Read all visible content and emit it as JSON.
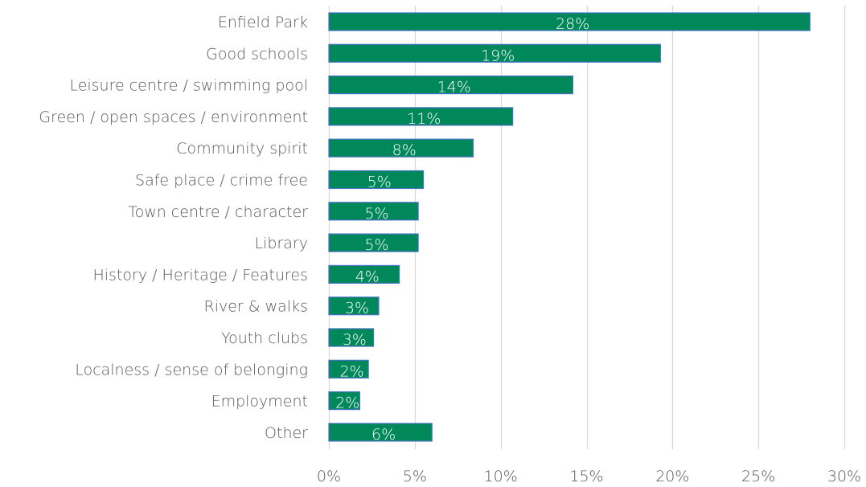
{
  "chart_data": {
    "type": "bar",
    "orientation": "horizontal",
    "categories": [
      "Enfield Park",
      "Good schools",
      "Leisure centre / swimming pool",
      "Green / open spaces / environment",
      "Community spirit",
      "Safe place / crime free",
      "Town centre / character",
      "Library",
      "History / Heritage / Features",
      "River & walks",
      "Youth clubs",
      "Localness / sense of belonging",
      "Employment",
      "Other"
    ],
    "values": [
      28,
      19.3,
      14.2,
      10.7,
      8.4,
      5.5,
      5.2,
      5.2,
      4.1,
      2.9,
      2.6,
      2.3,
      1.8,
      6
    ],
    "data_labels": [
      "28%",
      "19%",
      "14%",
      "11%",
      "8%",
      "5%",
      "5%",
      "5%",
      "4%",
      "3%",
      "3%",
      "2%",
      "2%",
      "6%"
    ],
    "x_ticks": [
      0,
      5,
      10,
      15,
      20,
      25,
      30
    ],
    "x_tick_labels": [
      "0%",
      "5%",
      "10%",
      "15%",
      "20%",
      "25%",
      "30%"
    ],
    "xlim": [
      0,
      30
    ],
    "title": "",
    "xlabel": "",
    "ylabel": "",
    "grid": "vertical",
    "legend": "none",
    "bar_color": "#00875a",
    "bar_border_color": "#4472c4",
    "grid_color": "#d9d9d9",
    "label_color": "#595959"
  }
}
